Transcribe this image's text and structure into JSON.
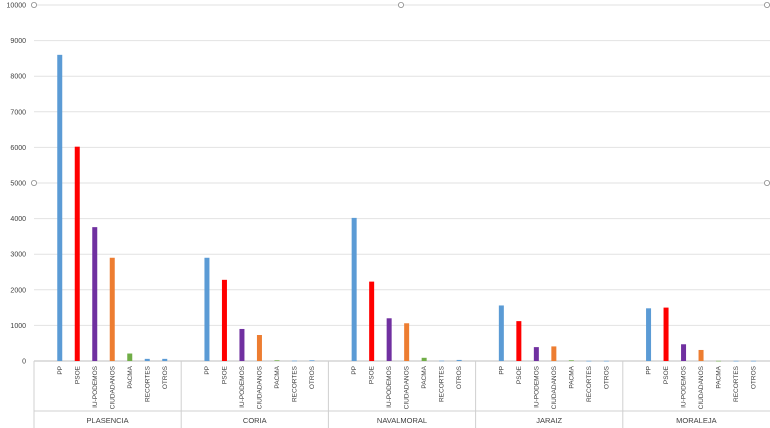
{
  "chart_data": {
    "type": "bar",
    "title": "",
    "xlabel": "",
    "ylabel": "",
    "ylim": [
      0,
      10000
    ],
    "yticks": [
      0,
      1000,
      2000,
      3000,
      4000,
      5000,
      6000,
      7000,
      8000,
      9000,
      10000
    ],
    "grid": true,
    "legend": "none",
    "categories": [
      "PP",
      "PSOE",
      "IU-PODEMOS",
      "CIUDADANOS",
      "PACMA",
      "RECORTES",
      "OTROS"
    ],
    "colors": [
      "#5b9bd5",
      "#ff0000",
      "#7030a0",
      "#ed7d31",
      "#70ad47",
      "#5b9bd5",
      "#5b9bd5"
    ],
    "groups": [
      {
        "name": "PLASENCIA",
        "values": [
          8600,
          6020,
          3760,
          2900,
          210,
          60,
          60
        ]
      },
      {
        "name": "CORIA",
        "values": [
          2900,
          2280,
          900,
          730,
          20,
          10,
          20
        ]
      },
      {
        "name": "NAVALMORAL",
        "values": [
          4020,
          2230,
          1200,
          1060,
          90,
          10,
          30
        ]
      },
      {
        "name": "JARAIZ",
        "values": [
          1560,
          1120,
          390,
          410,
          20,
          5,
          5
        ]
      },
      {
        "name": "MORALEJA",
        "values": [
          1480,
          1500,
          470,
          310,
          5,
          5,
          5
        ]
      }
    ]
  }
}
